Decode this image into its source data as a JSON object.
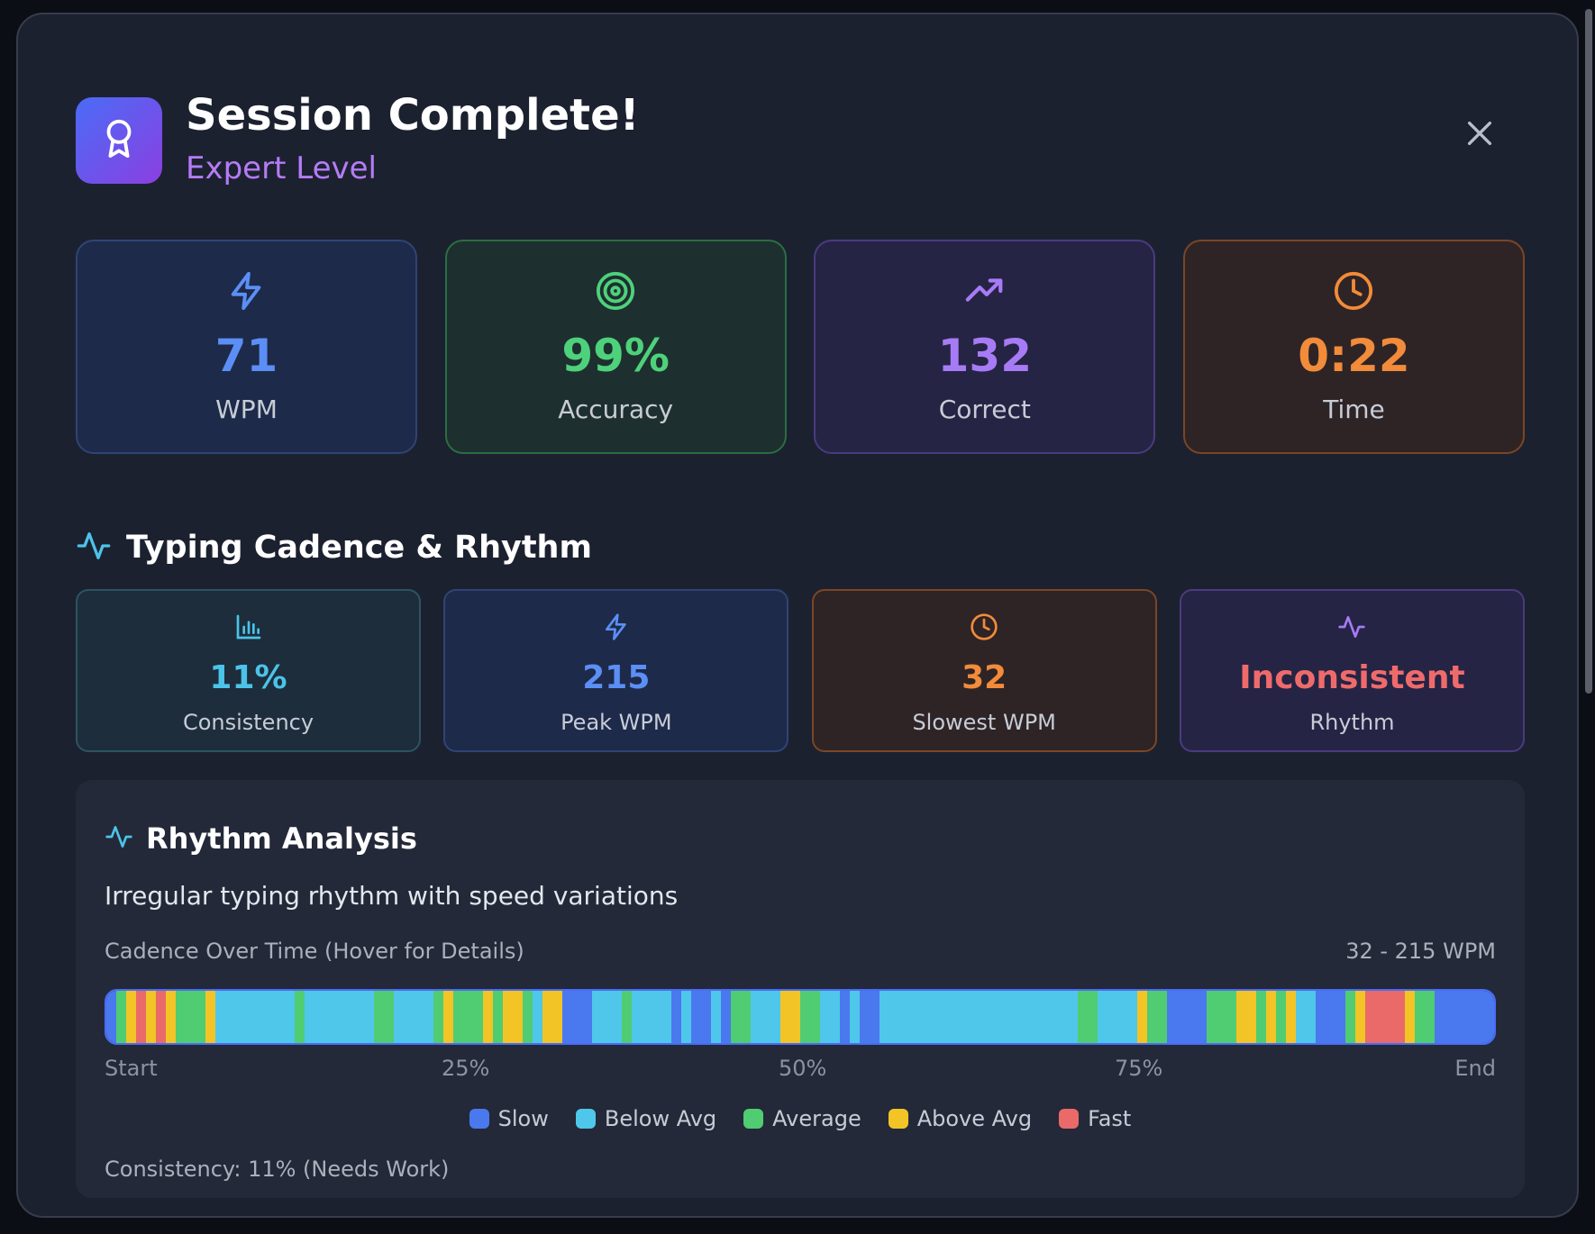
{
  "header": {
    "title": "Session Complete!",
    "subtitle": "Expert Level",
    "badge_icon": "award-icon",
    "close_icon": "close-icon"
  },
  "stats": [
    {
      "icon": "lightning-icon",
      "value": "71",
      "label": "WPM",
      "color": "#5b8ff5"
    },
    {
      "icon": "target-icon",
      "value": "99%",
      "label": "Accuracy",
      "color": "#4ed17b"
    },
    {
      "icon": "trending-up-icon",
      "value": "132",
      "label": "Correct",
      "color": "#a77bf5"
    },
    {
      "icon": "clock-icon",
      "value": "0:22",
      "label": "Time",
      "color": "#f28b3a"
    }
  ],
  "cadence_section": {
    "title": "Typing Cadence & Rhythm",
    "icon": "activity-icon"
  },
  "cadence_stats": [
    {
      "icon": "bar-chart-icon",
      "value": "11%",
      "label": "Consistency",
      "color": "#4cc3e8"
    },
    {
      "icon": "lightning-icon",
      "value": "215",
      "label": "Peak WPM",
      "color": "#5b8ff5"
    },
    {
      "icon": "clock-icon",
      "value": "32",
      "label": "Slowest WPM",
      "color": "#f28b3a"
    },
    {
      "icon": "activity-icon",
      "value": "Inconsistent",
      "label": "Rhythm",
      "color": "#ef6b6b",
      "icon_color": "#a77bf5"
    }
  ],
  "rhythm_analysis": {
    "title": "Rhythm Analysis",
    "description": "Irregular typing rhythm with speed variations",
    "caption": "Cadence Over Time (Hover for Details)",
    "range": "32 - 215 WPM",
    "ticks": [
      "Start",
      "25%",
      "50%",
      "75%",
      "End"
    ],
    "legend": [
      {
        "label": "Slow",
        "color": "#4a78ee"
      },
      {
        "label": "Below Avg",
        "color": "#4fc7ea"
      },
      {
        "label": "Average",
        "color": "#50cc72"
      },
      {
        "label": "Above Avg",
        "color": "#f2c425"
      },
      {
        "label": "Fast",
        "color": "#e96a68"
      }
    ],
    "footer": "Consistency: 11% (Needs Work)",
    "segments": "SGYFYFYGGGYBBBBBBBBGBBBBBBBGGBBBBGYGGGYGYYGBYYSSSBBBGBBBBSBSSBSGGBBBYYGGBBSBSSBBBBBBBBBBBBBBBBBBBBGGBBBBYGGSSSSGGGYYGYGYBBSSSGYFFFFYGGSSSSSS",
    "segment_colors": {
      "S": "#4a78ee",
      "B": "#4fc7ea",
      "G": "#50cc72",
      "Y": "#f2c425",
      "F": "#e96a68"
    }
  }
}
